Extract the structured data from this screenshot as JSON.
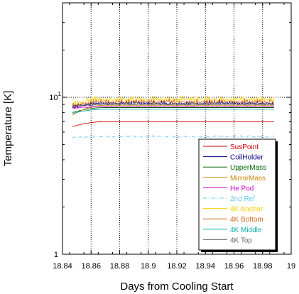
{
  "chart_data": {
    "type": "line",
    "title": "",
    "xlabel": "Days from Cooling Start",
    "ylabel": "Temperature [K]",
    "xlim": [
      18.84,
      19.0
    ],
    "ylim": [
      1,
      40
    ],
    "yscale": "log",
    "grid": "dotted, major only",
    "legend_position": "bottom-right inside plot",
    "x_ticks": [
      "18.84",
      "18.86",
      "18.88",
      "18.9",
      "18.92",
      "18.94",
      "18.96",
      "18.98",
      "19"
    ],
    "x_tick_values": [
      18.84,
      18.86,
      18.88,
      18.9,
      18.92,
      18.94,
      18.96,
      18.98,
      19.0
    ],
    "y_ticks": [
      {
        "value": 1,
        "base": "1",
        "exp": ""
      },
      {
        "value": 10,
        "base": "10",
        "exp": "1"
      }
    ],
    "x_start": 18.847,
    "x_end": 18.988,
    "series": [
      {
        "name": "SusPoint",
        "color": "#cc0000",
        "style": "solid",
        "value": 7.0,
        "noise": 0.0,
        "start": 6.5
      },
      {
        "name": "CoilHolder",
        "color": "#000080",
        "style": "solid",
        "value": 9.1,
        "noise": 0.45,
        "start": 8.6
      },
      {
        "name": "UpperMass",
        "color": "#006600",
        "style": "solid",
        "value": 8.6,
        "noise": 0.0,
        "start": 8.0
      },
      {
        "name": "MirrorMass",
        "color": "#cc8800",
        "style": "solid",
        "value": 8.9,
        "noise": 0.0,
        "start": 7.7
      },
      {
        "name": "He Pod",
        "color": "#cc00cc",
        "style": "solid",
        "value": 8.7,
        "noise": 0.12,
        "start": 8.5
      },
      {
        "name": "2nd Ref",
        "color": "#66ccee",
        "style": "dashdot",
        "value": 5.6,
        "noise": 0.12,
        "start": 5.5
      },
      {
        "name": "4K Anchor",
        "color": "#ffcc00",
        "style": "solid",
        "value": 9.6,
        "noise": 0.55,
        "start": 9.0
      },
      {
        "name": "4K Bottom",
        "color": "#d2691e",
        "style": "solid",
        "value": 9.3,
        "noise": 0.45,
        "start": 8.8
      },
      {
        "name": "4K Middle",
        "color": "#00aaaa",
        "style": "solid",
        "value": 8.4,
        "noise": 0.0,
        "start": 7.9
      },
      {
        "name": "4K Top",
        "color": "#666666",
        "style": "solid",
        "value": 9.0,
        "noise": 0.2,
        "start": 8.7
      }
    ]
  }
}
